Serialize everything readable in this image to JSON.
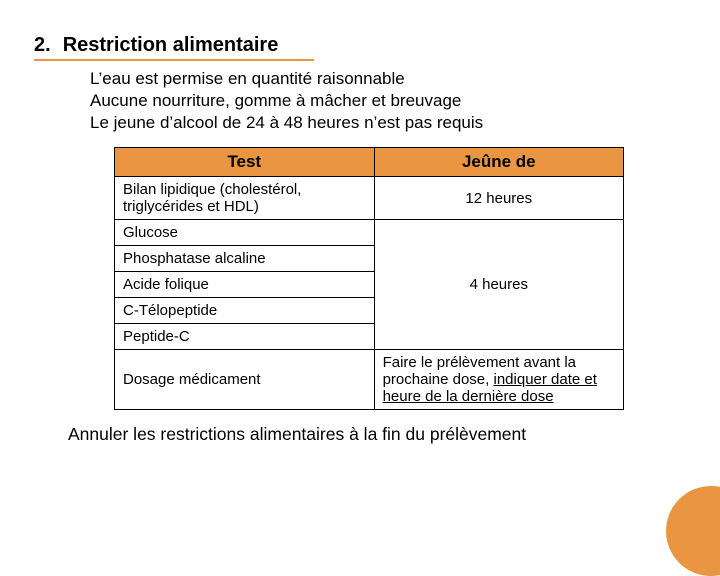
{
  "colors": {
    "accent": "#e99542",
    "header_bg": "#e99542",
    "heading_underline": "#e99542",
    "table_border": "#000000",
    "text": "#000000",
    "background": "#ffffff"
  },
  "heading": {
    "number": "2.",
    "text": "Restriction alimentaire"
  },
  "bullets": [
    "L’eau est permise en quantité raisonnable",
    "Aucune nourriture, gomme à mâcher et breuvage",
    "Le jeune d’alcool de 24 à 48 heures n’est pas requis"
  ],
  "table": {
    "columns": [
      "Test",
      "Jeûne de"
    ],
    "groups": [
      {
        "tests": [
          "Bilan lipidique (cholestérol, triglycérides et HDL)"
        ],
        "value_plain": "12 heures"
      },
      {
        "tests": [
          "Glucose",
          "Phosphatase alcaline",
          "Acide folique",
          "C-Télopeptide",
          "Peptide-C"
        ],
        "value_plain": "4 heures"
      },
      {
        "tests": [
          "Dosage médicament"
        ],
        "value_pre": "Faire le prélèvement avant la prochaine dose, ",
        "value_underlined": "indiquer date et heure de la dernière dose"
      }
    ]
  },
  "footer": "Annuler les restrictions alimentaires à la fin du prélèvement"
}
